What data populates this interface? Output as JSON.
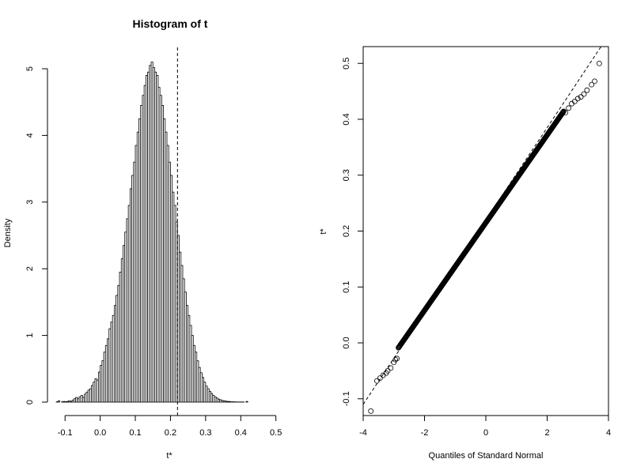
{
  "chart_data": [
    {
      "type": "bar",
      "title": "Histogram of t",
      "xlabel": "t*",
      "ylabel": "Density",
      "xlim": [
        -0.15,
        0.53
      ],
      "ylim": [
        0,
        5.2
      ],
      "x_ticks": [
        {
          "value": -0.1,
          "label": "-0.1"
        },
        {
          "value": 0.0,
          "label": "0.0"
        },
        {
          "value": 0.1,
          "label": "0.1"
        },
        {
          "value": 0.2,
          "label": "0.2"
        },
        {
          "value": 0.3,
          "label": "0.3"
        },
        {
          "value": 0.4,
          "label": "0.4"
        },
        {
          "value": 0.5,
          "label": "0.5"
        }
      ],
      "y_ticks": [
        {
          "value": 0,
          "label": "0"
        },
        {
          "value": 1,
          "label": "1"
        },
        {
          "value": 2,
          "label": "2"
        },
        {
          "value": 3,
          "label": "3"
        },
        {
          "value": 4,
          "label": "4"
        },
        {
          "value": 5,
          "label": "5"
        }
      ],
      "reference_line_x": 0.22,
      "bins": {
        "start": -0.15,
        "width": 0.005,
        "density": [
          0,
          0,
          0,
          0,
          0,
          0.005,
          0.02,
          0,
          0.005,
          0.01,
          0.005,
          0.01,
          0.02,
          0.01,
          0.03,
          0.05,
          0.07,
          0.05,
          0.08,
          0.1,
          0.07,
          0.12,
          0.15,
          0.18,
          0.2,
          0.25,
          0.3,
          0.35,
          0.33,
          0.45,
          0.55,
          0.62,
          0.75,
          0.85,
          0.95,
          1.1,
          1.2,
          1.3,
          1.45,
          1.6,
          1.75,
          1.95,
          2.15,
          2.35,
          2.55,
          2.75,
          2.95,
          3.2,
          3.4,
          3.6,
          3.85,
          4.05,
          4.25,
          4.45,
          4.6,
          4.75,
          4.9,
          4.95,
          5.05,
          5.1,
          5.02,
          4.95,
          4.9,
          4.72,
          4.6,
          4.45,
          4.25,
          4.05,
          3.85,
          3.6,
          3.4,
          3.15,
          2.95,
          2.7,
          2.5,
          2.25,
          2.05,
          1.85,
          1.65,
          1.45,
          1.3,
          1.15,
          1.0,
          0.85,
          0.75,
          0.62,
          0.52,
          0.44,
          0.37,
          0.3,
          0.24,
          0.2,
          0.16,
          0.13,
          0.1,
          0.08,
          0.06,
          0.045,
          0.035,
          0.025,
          0.02,
          0.015,
          0.01,
          0.01,
          0.005,
          0.005,
          0.003,
          0.003,
          0.002,
          0.002,
          0.002,
          0.002,
          0,
          0.01,
          0,
          0,
          0,
          0
        ]
      }
    },
    {
      "type": "scatter",
      "title": "",
      "xlabel": "Quantiles of Standard Normal",
      "ylabel": "t*",
      "xlim": [
        -4,
        4
      ],
      "ylim": [
        -0.13,
        0.53
      ],
      "x_ticks": [
        {
          "value": -4,
          "label": "-4"
        },
        {
          "value": -2,
          "label": "-2"
        },
        {
          "value": 0,
          "label": "0"
        },
        {
          "value": 2,
          "label": "2"
        },
        {
          "value": 4,
          "label": "4"
        }
      ],
      "y_ticks": [
        {
          "value": -0.1,
          "label": "-0.1"
        },
        {
          "value": 0.0,
          "label": "0.0"
        },
        {
          "value": 0.1,
          "label": "0.1"
        },
        {
          "value": 0.2,
          "label": "0.2"
        },
        {
          "value": 0.3,
          "label": "0.3"
        },
        {
          "value": 0.4,
          "label": "0.4"
        },
        {
          "value": 0.5,
          "label": "0.5"
        }
      ],
      "reference_line": {
        "intercept": 0.22,
        "slope": 0.0825
      },
      "points": [
        [
          -3.75,
          -0.122
        ],
        [
          -3.55,
          -0.068
        ],
        [
          -3.45,
          -0.063
        ],
        [
          -3.35,
          -0.058
        ],
        [
          -3.25,
          -0.054
        ],
        [
          -3.2,
          -0.05
        ],
        [
          -3.1,
          -0.045
        ],
        [
          -3.0,
          -0.035
        ],
        [
          -2.95,
          -0.03
        ],
        [
          -2.9,
          -0.028
        ],
        [
          3.7,
          0.5
        ],
        [
          3.55,
          0.468
        ],
        [
          3.45,
          0.462
        ],
        [
          3.3,
          0.452
        ],
        [
          3.2,
          0.445
        ],
        [
          3.1,
          0.44
        ],
        [
          3.0,
          0.437
        ],
        [
          2.9,
          0.432
        ],
        [
          2.8,
          0.428
        ],
        [
          2.7,
          0.42
        ],
        [
          2.6,
          0.412
        ]
      ],
      "dense_body": {
        "x_from": -2.85,
        "x_to": 2.55,
        "intercept": 0.215,
        "slope": 0.0785
      }
    }
  ]
}
